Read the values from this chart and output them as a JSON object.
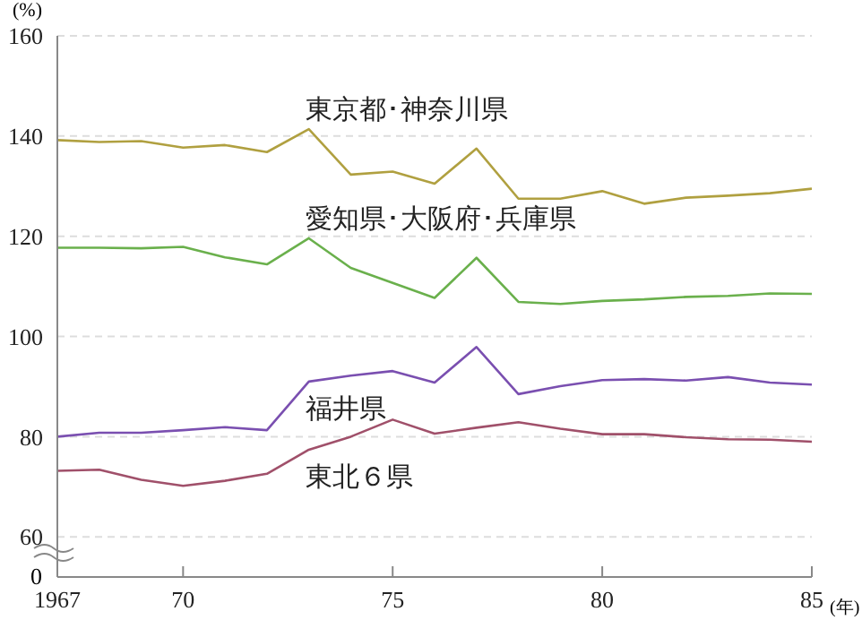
{
  "chart_data": {
    "type": "line",
    "ylabel": "(%)",
    "xlabel": "(年)",
    "x": [
      1967,
      1968,
      1969,
      1970,
      1971,
      1972,
      1973,
      1974,
      1975,
      1976,
      1977,
      1978,
      1979,
      1980,
      1981,
      1982,
      1983,
      1984,
      1985
    ],
    "series": [
      {
        "name": "東京都･神奈川県",
        "color": "#b0a040",
        "values": [
          139.2,
          138.8,
          139.0,
          137.7,
          138.2,
          136.8,
          141.4,
          132.3,
          132.9,
          130.5,
          137.5,
          127.5,
          127.5,
          129.0,
          126.5,
          127.7,
          128.1,
          128.6,
          129.5
        ]
      },
      {
        "name": "愛知県･大阪府･兵庫県",
        "color": "#6ab04c",
        "values": [
          117.7,
          117.7,
          117.6,
          117.9,
          115.8,
          114.4,
          119.6,
          113.7,
          110.7,
          107.7,
          115.7,
          106.9,
          106.5,
          107.1,
          107.4,
          107.9,
          108.1,
          108.6,
          108.5
        ]
      },
      {
        "name": "福井県",
        "color": "#7a4fb0",
        "values": [
          80.0,
          80.8,
          80.8,
          81.3,
          81.9,
          81.3,
          91.0,
          92.2,
          93.1,
          90.8,
          97.9,
          88.5,
          90.1,
          91.3,
          91.5,
          91.2,
          91.9,
          90.8,
          90.4
        ]
      },
      {
        "name": "東北６県",
        "color": "#a0506a",
        "values": [
          73.2,
          73.4,
          71.4,
          70.2,
          71.2,
          72.6,
          77.4,
          80.0,
          83.4,
          80.6,
          81.8,
          82.9,
          81.6,
          80.5,
          80.5,
          79.9,
          79.5,
          79.4,
          79.0
        ]
      }
    ],
    "xlim": [
      1967,
      1985
    ],
    "xticks": [
      1967,
      {
        "value": 1970,
        "label": "70"
      },
      {
        "value": 1975,
        "label": "75"
      },
      {
        "value": 1980,
        "label": "80"
      },
      {
        "value": 1985,
        "label": "85"
      }
    ],
    "ylim": [
      52,
      160
    ],
    "yticks": [
      60,
      80,
      100,
      120,
      140,
      160
    ],
    "annotations": [
      "0"
    ],
    "grid": "y",
    "legend": false,
    "marker": "none",
    "line_style": "solid"
  }
}
